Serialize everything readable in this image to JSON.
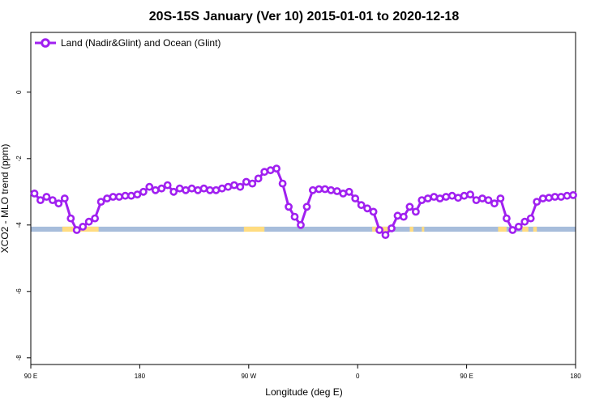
{
  "chart_data": {
    "type": "line",
    "title": "20S-15S January (Ver 10)   2015-01-01 to 2020-12-18",
    "xlabel": "Longitude (deg E)",
    "ylabel": "XCO2 - MLO trend (ppm)",
    "xlim": [
      90,
      540
    ],
    "ylim": [
      -8.2,
      1.8
    ],
    "x_ticks": [
      {
        "value": 90,
        "label": "90 E"
      },
      {
        "value": 180,
        "label": "180"
      },
      {
        "value": 270,
        "label": "90 W"
      },
      {
        "value": 360,
        "label": "0"
      },
      {
        "value": 450,
        "label": "90 E"
      },
      {
        "value": 540,
        "label": "180"
      }
    ],
    "y_ticks": [
      {
        "value": 0,
        "label": "0"
      },
      {
        "value": -2,
        "label": "-2"
      },
      {
        "value": -4,
        "label": "-4"
      },
      {
        "value": -6,
        "label": "-6"
      },
      {
        "value": -8,
        "label": "-8"
      }
    ],
    "legend": {
      "position": "top-left",
      "entries": [
        "Land (Nadir&Glint) and Ocean (Glint)"
      ]
    },
    "series": [
      {
        "name": "Land (Nadir&Glint) and Ocean (Glint)",
        "color": "#a020f0",
        "x": [
          93,
          98,
          103,
          108,
          113,
          118,
          123,
          128,
          133,
          138,
          143,
          148,
          153,
          158,
          163,
          168,
          173,
          178,
          183,
          188,
          193,
          198,
          203,
          208,
          213,
          218,
          223,
          228,
          233,
          238,
          243,
          248,
          253,
          258,
          263,
          268,
          273,
          278,
          283,
          288,
          293,
          298,
          303,
          308,
          313,
          318,
          323,
          328,
          333,
          338,
          343,
          348,
          353,
          358,
          363,
          368,
          373,
          378,
          383,
          388,
          393,
          398,
          403,
          408,
          413,
          418,
          423,
          428,
          433,
          438,
          443,
          448,
          453,
          458,
          463,
          468,
          473,
          478,
          483,
          488,
          493,
          498,
          503,
          508,
          513,
          518,
          523,
          528,
          533,
          538
        ],
        "y": [
          -3.05,
          -3.25,
          -3.15,
          -3.25,
          -3.35,
          -3.2,
          -3.8,
          -4.15,
          -4.05,
          -3.9,
          -3.8,
          -3.3,
          -3.2,
          -3.15,
          -3.15,
          -3.12,
          -3.12,
          -3.08,
          -3.0,
          -2.85,
          -2.95,
          -2.9,
          -2.8,
          -3.0,
          -2.9,
          -2.95,
          -2.9,
          -2.95,
          -2.9,
          -2.95,
          -2.95,
          -2.9,
          -2.85,
          -2.8,
          -2.85,
          -2.7,
          -2.75,
          -2.6,
          -2.4,
          -2.35,
          -2.3,
          -2.75,
          -3.45,
          -3.75,
          -4.0,
          -3.45,
          -2.95,
          -2.92,
          -2.92,
          -2.95,
          -2.98,
          -3.05,
          -3.0,
          -3.2,
          -3.4,
          -3.5,
          -3.6,
          -4.15,
          -4.3,
          -4.1,
          -3.72,
          -3.75,
          -3.45,
          -3.6,
          -3.25,
          -3.2,
          -3.15,
          -3.2,
          -3.15,
          -3.12,
          -3.18,
          -3.12,
          -3.08,
          -3.25,
          -3.2,
          -3.25,
          -3.35,
          -3.2,
          -3.8,
          -4.15,
          -4.05,
          -3.9,
          -3.8,
          -3.3,
          -3.2,
          -3.18,
          -3.15,
          -3.15,
          -3.12,
          -3.1
        ]
      }
    ],
    "surface_band": {
      "y_range": [
        -4.2,
        -4.05
      ],
      "ocean_color": "#a7bddb",
      "land_color": "#ffdc80",
      "land_ranges": [
        [
          116,
          146
        ],
        [
          266,
          283
        ],
        [
          372,
          388
        ],
        [
          403,
          406
        ],
        [
          413,
          415
        ],
        [
          476,
          483
        ],
        [
          496,
          501
        ],
        [
          505,
          508
        ]
      ]
    }
  }
}
